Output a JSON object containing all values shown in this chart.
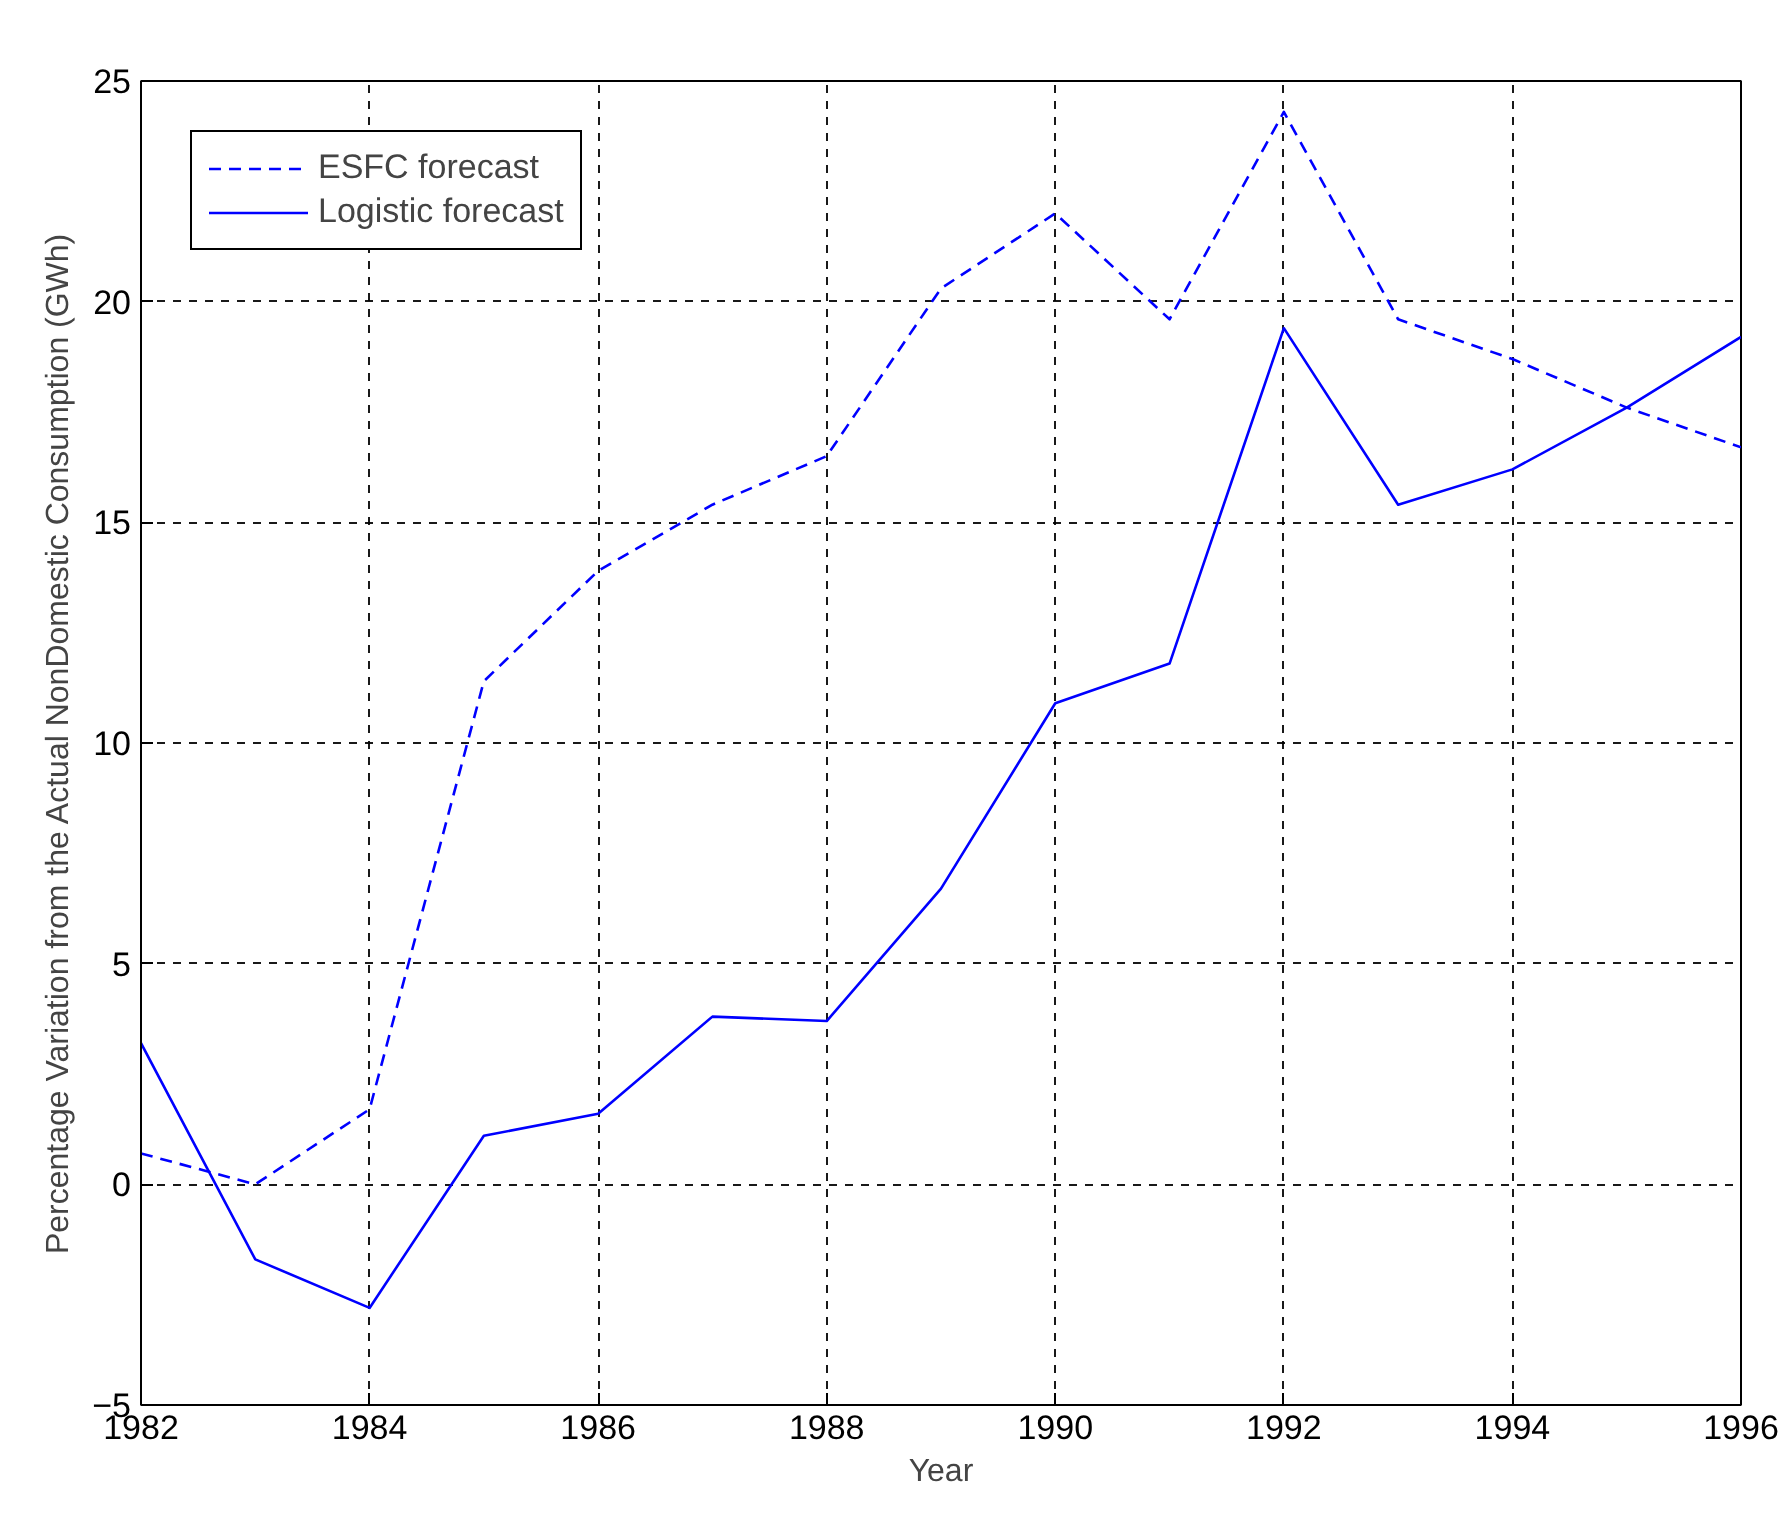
{
  "chart_data": {
    "type": "line",
    "xlabel": "Year",
    "ylabel": "Percentage Variation from the Actual NonDomestic Consumption (GWh)",
    "x": [
      1982,
      1983,
      1984,
      1985,
      1986,
      1987,
      1988,
      1989,
      1990,
      1991,
      1992,
      1993,
      1994,
      1995,
      1996
    ],
    "series": [
      {
        "name": "ESFC forecast",
        "color": "#0000ff",
        "line_style": "dashed",
        "values": [
          0.7,
          0.0,
          1.7,
          11.4,
          13.9,
          15.4,
          16.5,
          20.3,
          22.0,
          19.6,
          24.3,
          19.6,
          18.7,
          17.6,
          16.7
        ]
      },
      {
        "name": "Logistic forecast",
        "color": "#0000ff",
        "line_style": "solid",
        "values": [
          3.2,
          -1.7,
          -2.8,
          1.1,
          1.6,
          3.8,
          3.7,
          6.7,
          10.9,
          11.8,
          19.4,
          15.4,
          16.2,
          17.6,
          19.2
        ]
      }
    ],
    "xlim": [
      1982,
      1996
    ],
    "xticks": [
      1982,
      1984,
      1986,
      1988,
      1990,
      1992,
      1994,
      1996
    ],
    "ylim": [
      -5,
      25
    ],
    "yticks": [
      -5,
      0,
      5,
      10,
      15,
      20,
      25
    ],
    "grid": true,
    "legend": "top left",
    "marker": "none"
  }
}
